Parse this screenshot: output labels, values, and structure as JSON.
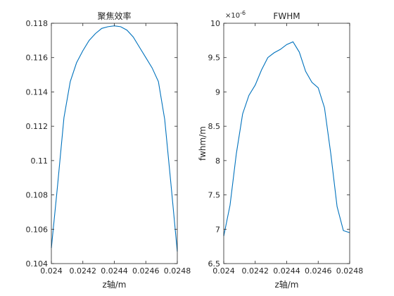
{
  "chart_data": [
    {
      "type": "line",
      "title": "聚焦效率",
      "xlabel": "z轴/m",
      "ylabel": "",
      "xlim": [
        0.024,
        0.0248
      ],
      "ylim": [
        0.104,
        0.118
      ],
      "xticks": [
        0.024,
        0.0242,
        0.0244,
        0.0246,
        0.0248
      ],
      "xtick_labels": [
        "0.024",
        "0.0242",
        "0.0244",
        "0.0246",
        "0.0248"
      ],
      "yticks": [
        0.104,
        0.106,
        0.108,
        0.11,
        0.112,
        0.114,
        0.116,
        0.118
      ],
      "ytick_labels": [
        "0.104",
        "0.106",
        "0.108",
        "0.11",
        "0.112",
        "0.114",
        "0.116",
        "0.118"
      ],
      "series_color": "#0072BD",
      "series": [
        {
          "x": [
            0.024,
            0.02404,
            0.02408,
            0.02412,
            0.02416,
            0.0242,
            0.02424,
            0.02428,
            0.02432,
            0.02436,
            0.0244,
            0.02444,
            0.02448,
            0.02452,
            0.02456,
            0.0246,
            0.02464,
            0.02468,
            0.02472,
            0.02476,
            0.0248
          ],
          "values": [
            0.1049,
            0.1086,
            0.1125,
            0.1146,
            0.1157,
            0.1164,
            0.117,
            0.1174,
            0.1177,
            0.1178,
            0.11785,
            0.1178,
            0.1176,
            0.1172,
            0.1166,
            0.116,
            0.1154,
            0.1146,
            0.1124,
            0.1086,
            0.1047
          ]
        }
      ]
    },
    {
      "type": "line",
      "title": "FWHM",
      "xlabel": "z轴/m",
      "ylabel": "fwhm/m",
      "exponent_label": "×10",
      "exponent_power": "-6",
      "xlim": [
        0.024,
        0.0248
      ],
      "ylim": [
        6.5,
        10
      ],
      "xticks": [
        0.024,
        0.0242,
        0.0244,
        0.0246,
        0.0248
      ],
      "xtick_labels": [
        "0.024",
        "0.0242",
        "0.0244",
        "0.0246",
        "0.0248"
      ],
      "yticks": [
        6.5,
        7,
        7.5,
        8,
        8.5,
        9,
        9.5,
        10
      ],
      "ytick_labels": [
        "6.5",
        "7",
        "7.5",
        "8",
        "8.5",
        "9",
        "9.5",
        "10"
      ],
      "series_color": "#0072BD",
      "series": [
        {
          "x": [
            0.024,
            0.02404,
            0.02408,
            0.02412,
            0.02416,
            0.0242,
            0.02424,
            0.02428,
            0.02432,
            0.02436,
            0.0244,
            0.02444,
            0.02448,
            0.02452,
            0.02456,
            0.0246,
            0.02464,
            0.02468,
            0.02472,
            0.02476,
            0.0248
          ],
          "values": [
            6.9,
            7.35,
            8.1,
            8.68,
            8.95,
            9.1,
            9.32,
            9.5,
            9.57,
            9.62,
            9.69,
            9.73,
            9.58,
            9.3,
            9.14,
            9.06,
            8.77,
            8.1,
            7.33,
            6.98,
            6.95
          ]
        }
      ]
    }
  ]
}
